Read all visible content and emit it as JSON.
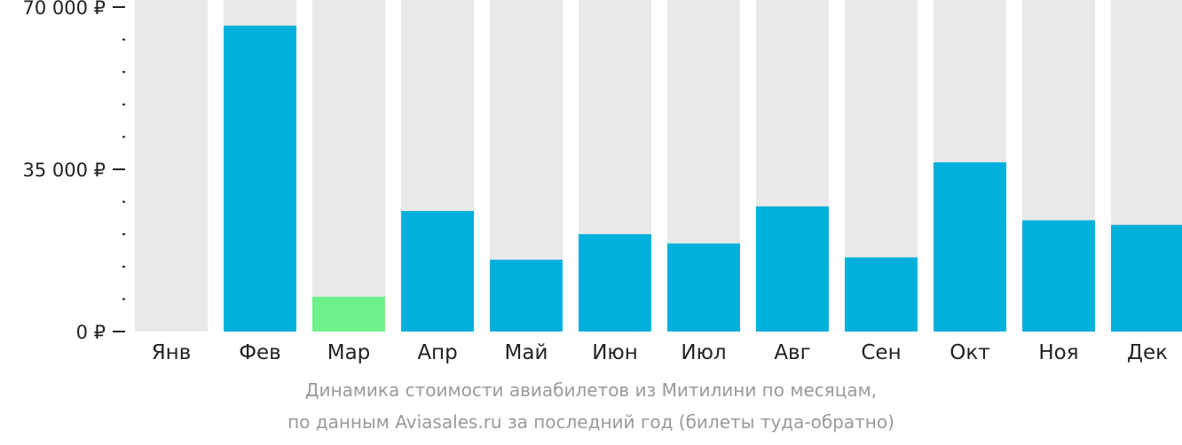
{
  "chart_data": {
    "type": "bar",
    "categories": [
      "Янв",
      "Фев",
      "Мар",
      "Апр",
      "Май",
      "Июн",
      "Июл",
      "Авг",
      "Сен",
      "Окт",
      "Ноя",
      "Дек"
    ],
    "values": [
      0,
      66000,
      7500,
      26000,
      15500,
      21000,
      19000,
      27000,
      16000,
      36500,
      24000,
      23000
    ],
    "highlight_index": 2,
    "ylim": [
      0,
      70000
    ],
    "y_tick_labels": [
      {
        "value": 70000,
        "label": "70 000 ₽"
      },
      {
        "value": 35000,
        "label": "35 000 ₽"
      },
      {
        "value": 0,
        "label": "0 ₽"
      }
    ],
    "y_minor_tick_step": 7000,
    "colors": {
      "bar": "#00b0dc",
      "highlight": "#6ef08a",
      "background_column": "#e9e9e9",
      "axis": "#222222"
    }
  },
  "caption": {
    "line1": "Динамика стоимости авиабилетов из Митилини по месяцам,",
    "line2": "по данным Aviasales.ru за последний год (билеты туда-обратно)"
  }
}
